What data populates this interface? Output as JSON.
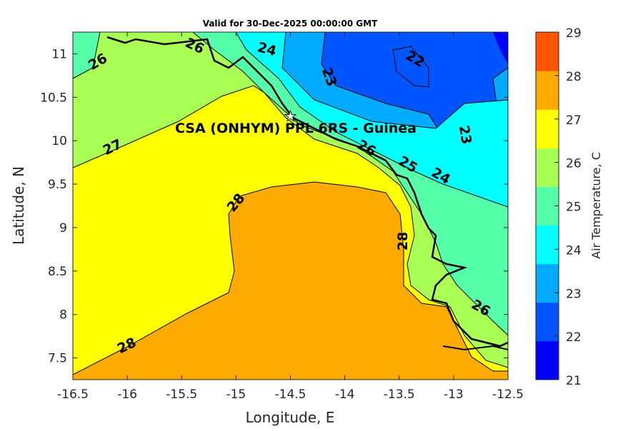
{
  "chart_data": {
    "type": "heatmap",
    "subtype": "filled-contour-map",
    "title": "Valid for 30-Dec-2025 00:00:00 GMT",
    "annotation": "CSA (ONHYM) PPL 6RS  - Guinea",
    "xlabel": "Longitude, E",
    "ylabel": "Latitude, N",
    "xlim": [
      -16.5,
      -12.5
    ],
    "ylim": [
      7.25,
      11.25
    ],
    "xticks": [
      -16.5,
      -16,
      -15.5,
      -15,
      -14.5,
      -14,
      -13.5,
      -13,
      -12.5
    ],
    "yticks": [
      7.5,
      8,
      8.5,
      9,
      9.5,
      10,
      10.5,
      11
    ],
    "colorbar": {
      "label": "Air Temperature, C",
      "ticks": [
        21,
        22,
        23,
        24,
        25,
        26,
        27,
        28,
        29
      ],
      "colors": [
        "#0000ff",
        "#0055ff",
        "#00aaff",
        "#00ffff",
        "#55ffaa",
        "#aaff55",
        "#ffff00",
        "#ffaa00",
        "#ff5500"
      ]
    },
    "contour_levels": [
      22,
      23,
      24,
      25,
      26,
      27,
      28
    ],
    "contour_labels": [
      "26",
      "26",
      "24",
      "22",
      "23",
      "23",
      "27",
      "24",
      "25",
      "28",
      "28",
      "28",
      "26",
      "26"
    ],
    "marker": {
      "type": "star",
      "lon": -14.5,
      "lat": 10.28
    }
  }
}
